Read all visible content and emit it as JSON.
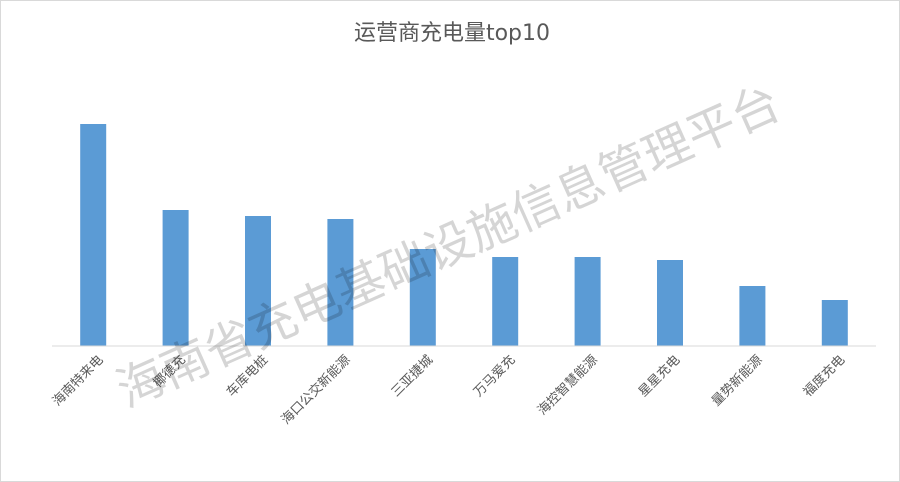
{
  "chart_data": {
    "type": "bar",
    "title": "运营商充电量top10",
    "categories": [
      "海南特来电",
      "椰德充",
      "车库电桩",
      "海口公交新能源",
      "三亚捷城",
      "万马爱充",
      "海控智慧能源",
      "星星充电",
      "量势新能源",
      "福度充电"
    ],
    "values": [
      222,
      136,
      130,
      127,
      97,
      89,
      89,
      86,
      60,
      46
    ],
    "color": "#5b9bd5",
    "ylim": [
      0,
      250
    ],
    "watermark": "海南省充电基础设施信息管理平台"
  }
}
